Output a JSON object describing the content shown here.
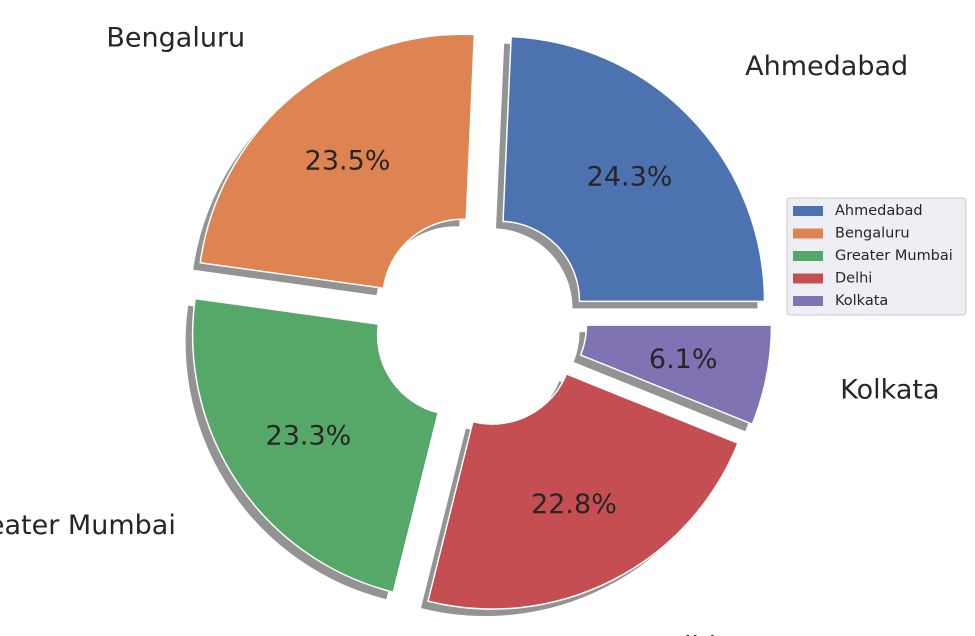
{
  "chart_data": {
    "type": "pie",
    "title": "",
    "categories": [
      "Ahmedabad",
      "Bengaluru",
      "Greater Mumbai",
      "Delhi",
      "Kolkata"
    ],
    "values": [
      24.3,
      23.5,
      23.3,
      22.8,
      6.1
    ],
    "value_labels": [
      "24.3%",
      "23.5%",
      "23.3%",
      "22.8%",
      "6.1%"
    ],
    "colors": [
      "#4c72b0",
      "#dd8452",
      "#55a868",
      "#c44e52",
      "#8172b3"
    ],
    "start_angle_deg": 0,
    "direction": "counterclockwise",
    "exploded": true,
    "shadow": true,
    "donut_hole": true,
    "legend": {
      "placement": "right",
      "entries": [
        "Ahmedabad",
        "Bengaluru",
        "Greater Mumbai",
        "Delhi",
        "Kolkata"
      ]
    }
  }
}
